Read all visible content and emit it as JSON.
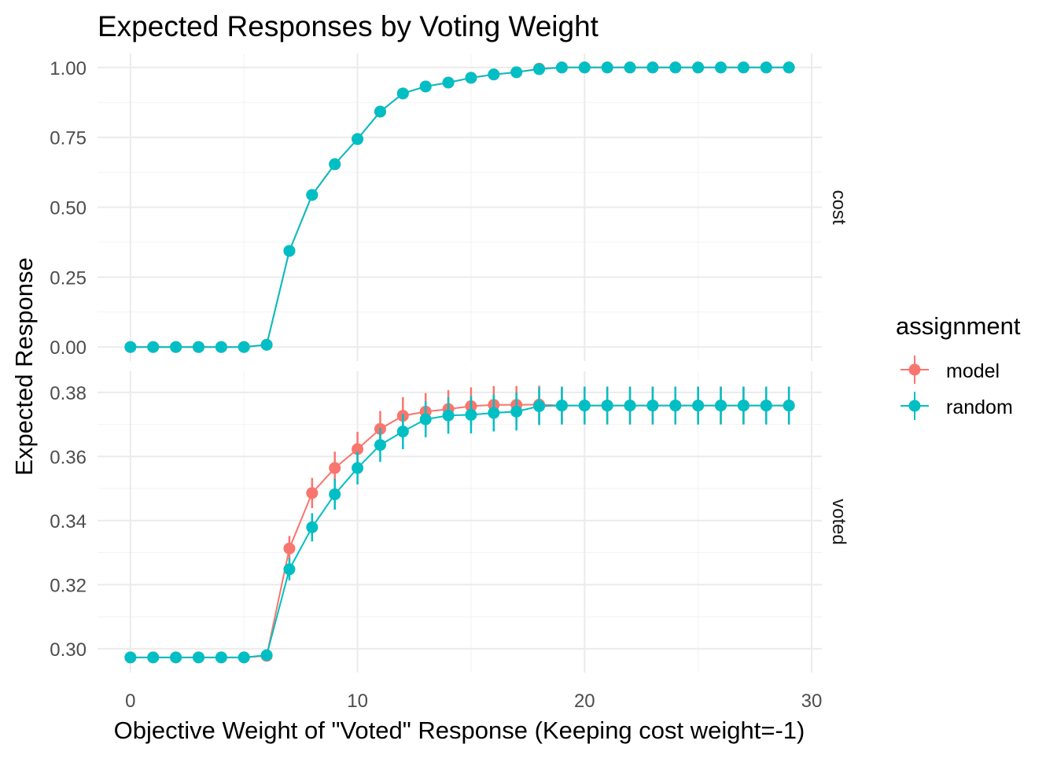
{
  "chart_data": {
    "type": "line",
    "title": "Expected Responses by Voting Weight",
    "xlabel": "Objective Weight of \"Voted\" Response (Keeping cost weight=-1)",
    "ylabel": "Expected Response",
    "x": [
      0,
      1,
      2,
      3,
      4,
      5,
      6,
      7,
      8,
      9,
      10,
      11,
      12,
      13,
      14,
      15,
      16,
      17,
      18,
      19,
      20,
      21,
      22,
      23,
      24,
      25,
      26,
      27,
      28,
      29
    ],
    "xlim": [
      -1.45,
      30.45
    ],
    "x_ticks": [
      0,
      10,
      20,
      30
    ],
    "x_tick_labels": [
      "0",
      "10",
      "20",
      "30"
    ],
    "grid": true,
    "legend": {
      "title": "assignment",
      "placement": "right",
      "entries": [
        "model",
        "random"
      ]
    },
    "colors": {
      "model": "#F8766D",
      "random": "#00BFC4"
    },
    "panels": [
      {
        "strip": "cost",
        "ylim": [
          -0.05,
          1.05
        ],
        "y_ticks": [
          0,
          0.25,
          0.5,
          0.75,
          1
        ],
        "y_tick_labels": [
          "0.00",
          "0.25",
          "0.50",
          "0.75",
          "1.00"
        ],
        "series": [
          {
            "name": "model",
            "values": [
              0,
              0,
              0,
              0,
              0,
              0,
              0.008,
              0.344,
              0.544,
              0.654,
              0.744,
              0.842,
              0.907,
              0.932,
              0.946,
              0.963,
              0.975,
              0.983,
              0.996,
              1,
              1,
              1,
              1,
              1,
              1,
              1,
              1,
              1,
              1,
              1
            ],
            "error": [
              0,
              0,
              0,
              0,
              0,
              0,
              0.001,
              0.002,
              0.002,
              0.002,
              0.002,
              0.002,
              0.002,
              0.002,
              0.002,
              0.002,
              0.002,
              0.002,
              0.001,
              0,
              0,
              0,
              0,
              0,
              0,
              0,
              0,
              0,
              0,
              0
            ]
          },
          {
            "name": "random",
            "values": [
              0,
              0,
              0,
              0,
              0,
              0,
              0.008,
              0.344,
              0.544,
              0.654,
              0.744,
              0.842,
              0.907,
              0.932,
              0.946,
              0.963,
              0.975,
              0.983,
              0.994,
              1,
              1,
              1,
              1,
              1,
              1,
              1,
              1,
              1,
              1,
              1
            ],
            "error": [
              0,
              0,
              0,
              0,
              0,
              0,
              0.001,
              0.002,
              0.002,
              0.002,
              0.002,
              0.002,
              0.002,
              0.002,
              0.002,
              0.002,
              0.002,
              0.002,
              0.001,
              0,
              0,
              0,
              0,
              0,
              0,
              0,
              0,
              0,
              0,
              0
            ]
          }
        ]
      },
      {
        "strip": "voted",
        "ylim": [
          0.2926,
          0.3866
        ],
        "y_ticks": [
          0.3,
          0.32,
          0.34,
          0.36,
          0.38
        ],
        "y_tick_labels": [
          "0.30",
          "0.32",
          "0.34",
          "0.36",
          "0.38"
        ],
        "series": [
          {
            "name": "model",
            "values": [
              0.2973,
              0.2973,
              0.2973,
              0.2973,
              0.2973,
              0.2973,
              0.2978,
              0.3313,
              0.3486,
              0.3564,
              0.3623,
              0.3686,
              0.3727,
              0.374,
              0.3748,
              0.3757,
              0.3761,
              0.3761,
              0.3762,
              0.3759,
              0.3759,
              0.3759,
              0.3759,
              0.3759,
              0.3759,
              0.3759,
              0.3759,
              0.3759,
              0.3759,
              0.3759
            ],
            "error": [
              0.001,
              0.001,
              0.001,
              0.001,
              0.001,
              0.001,
              0.0012,
              0.0039,
              0.0047,
              0.0051,
              0.0054,
              0.0056,
              0.0058,
              0.0058,
              0.0059,
              0.0059,
              0.0059,
              0.0059,
              0.0059,
              0.0059,
              0.0059,
              0.0059,
              0.0059,
              0.0059,
              0.0059,
              0.0059,
              0.0059,
              0.0059,
              0.0059,
              0.0059
            ]
          },
          {
            "name": "random",
            "values": [
              0.2973,
              0.2973,
              0.2973,
              0.2973,
              0.2973,
              0.2973,
              0.298,
              0.3248,
              0.3379,
              0.3482,
              0.3564,
              0.3636,
              0.3678,
              0.3716,
              0.3728,
              0.373,
              0.3736,
              0.374,
              0.3757,
              0.3759,
              0.3759,
              0.3759,
              0.3759,
              0.3759,
              0.3759,
              0.3759,
              0.3759,
              0.3759,
              0.3759,
              0.3759
            ],
            "error": [
              0.001,
              0.001,
              0.001,
              0.001,
              0.001,
              0.001,
              0.0012,
              0.0035,
              0.0044,
              0.0048,
              0.0051,
              0.0053,
              0.0055,
              0.0056,
              0.0057,
              0.0058,
              0.0058,
              0.0059,
              0.0059,
              0.0059,
              0.0059,
              0.0059,
              0.0059,
              0.0059,
              0.0059,
              0.0059,
              0.0059,
              0.0059,
              0.0059,
              0.0059
            ]
          }
        ]
      }
    ]
  }
}
